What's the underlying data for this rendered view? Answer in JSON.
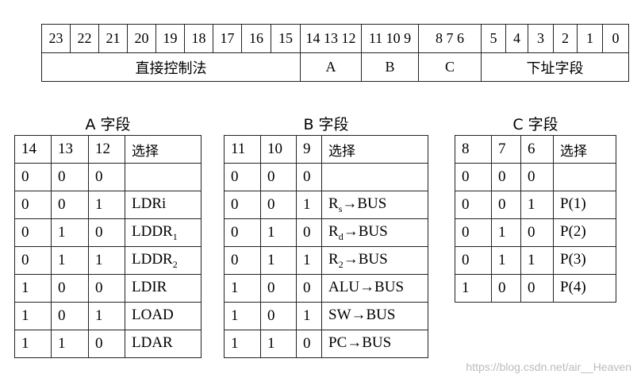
{
  "format": {
    "bits": [
      "23",
      "22",
      "21",
      "20",
      "19",
      "18",
      "17",
      "16",
      "15",
      "14 13 12",
      "11 10 9",
      "8  7  6",
      "5",
      "4",
      "3",
      "2",
      "1",
      "0"
    ],
    "fields": [
      "直接控制法",
      "A",
      "B",
      "C",
      "下址字段"
    ]
  },
  "tables": [
    {
      "title": "A 字段",
      "headers": [
        "14",
        "13",
        "12",
        "选择"
      ],
      "rows": [
        [
          "0",
          "0",
          "0",
          {
            "t": "",
            "s": "",
            "r": ""
          }
        ],
        [
          "0",
          "0",
          "1",
          {
            "t": "LDRi",
            "s": "",
            "r": ""
          }
        ],
        [
          "0",
          "1",
          "0",
          {
            "t": "LDDR",
            "s": "1",
            "r": ""
          }
        ],
        [
          "0",
          "1",
          "1",
          {
            "t": "LDDR",
            "s": "2",
            "r": ""
          }
        ],
        [
          "1",
          "0",
          "0",
          {
            "t": "LDIR",
            "s": "",
            "r": ""
          }
        ],
        [
          "1",
          "0",
          "1",
          {
            "t": "LOAD",
            "s": "",
            "r": ""
          }
        ],
        [
          "1",
          "1",
          "0",
          {
            "t": "LDAR",
            "s": "",
            "r": ""
          }
        ]
      ]
    },
    {
      "title": "B 字段",
      "headers": [
        "11",
        "10",
        "9",
        "选择"
      ],
      "rows": [
        [
          "0",
          "0",
          "0",
          {
            "t": "",
            "s": "",
            "r": ""
          }
        ],
        [
          "0",
          "0",
          "1",
          {
            "t": "R",
            "s": "s",
            "r": "→BUS"
          }
        ],
        [
          "0",
          "1",
          "0",
          {
            "t": "R",
            "s": "d",
            "r": "→BUS"
          }
        ],
        [
          "0",
          "1",
          "1",
          {
            "t": "R",
            "s": "2",
            "r": "→BUS"
          }
        ],
        [
          "1",
          "0",
          "0",
          {
            "t": "ALU→BUS",
            "s": "",
            "r": ""
          }
        ],
        [
          "1",
          "0",
          "1",
          {
            "t": "SW→BUS",
            "s": "",
            "r": ""
          }
        ],
        [
          "1",
          "1",
          "0",
          {
            "t": "PC→BUS",
            "s": "",
            "r": ""
          }
        ]
      ]
    },
    {
      "title": "C 字段",
      "headers": [
        "8",
        "7",
        "6",
        "选择"
      ],
      "rows": [
        [
          "0",
          "0",
          "0",
          {
            "t": "",
            "s": "",
            "r": ""
          }
        ],
        [
          "0",
          "0",
          "1",
          {
            "t": "P(1)",
            "s": "",
            "r": ""
          }
        ],
        [
          "0",
          "1",
          "0",
          {
            "t": "P(2)",
            "s": "",
            "r": ""
          }
        ],
        [
          "0",
          "1",
          "1",
          {
            "t": "P(3)",
            "s": "",
            "r": ""
          }
        ],
        [
          "1",
          "0",
          "0",
          {
            "t": "P(4)",
            "s": "",
            "r": ""
          }
        ]
      ]
    }
  ],
  "watermark": "https://blog.csdn.net/air__Heaven"
}
